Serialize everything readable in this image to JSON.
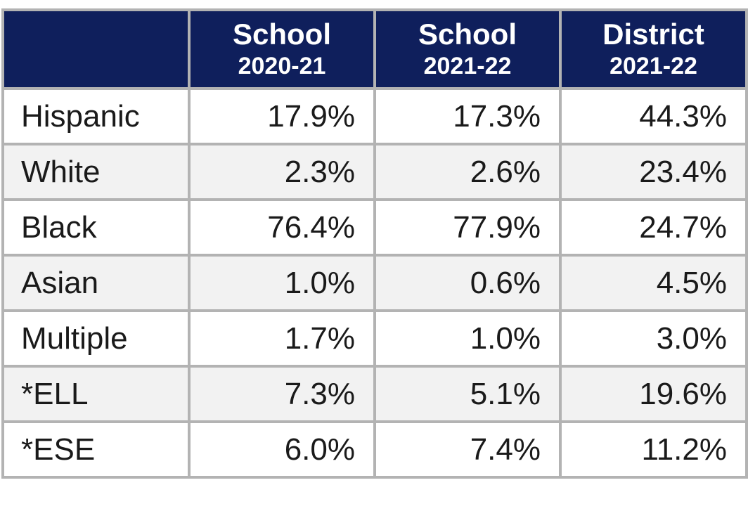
{
  "table": {
    "columns": [
      [
        "School",
        "2020-21"
      ],
      [
        "School",
        "2021-22"
      ],
      [
        "District",
        "2021-22"
      ]
    ],
    "rows": [
      [
        "Hispanic",
        "17.9%",
        "17.3%",
        "44.3%"
      ],
      [
        "White",
        "2.3%",
        "2.6%",
        "23.4%"
      ],
      [
        "Black",
        "76.4%",
        "77.9%",
        "24.7%"
      ],
      [
        "Asian",
        "1.0%",
        "0.6%",
        "4.5%"
      ],
      [
        "Multiple",
        "1.7%",
        "1.0%",
        "3.0%"
      ],
      [
        "*ELL",
        "7.3%",
        "5.1%",
        "19.6%"
      ],
      [
        "*ESE",
        "6.0%",
        "7.4%",
        "11.2%"
      ]
    ]
  }
}
